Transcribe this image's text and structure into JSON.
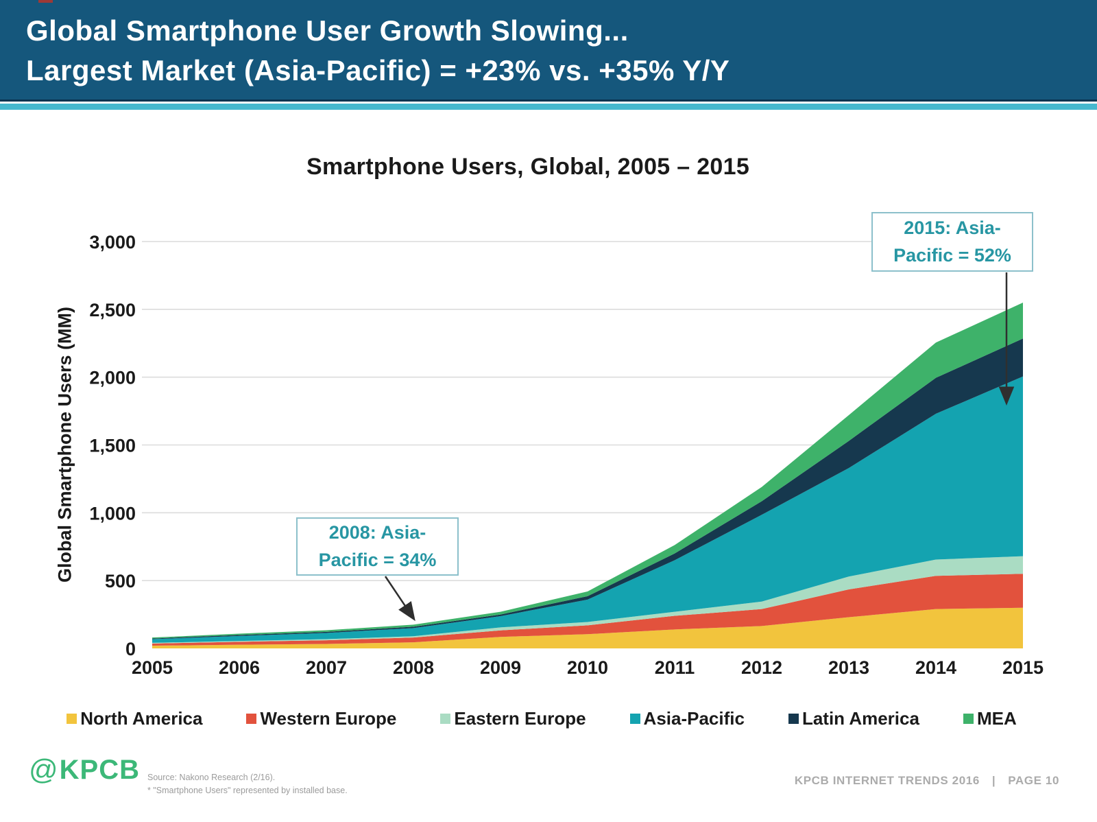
{
  "header": {
    "title_line1": "Global Smartphone User Growth Slowing...",
    "title_line2": "Largest Market (Asia-Pacific) = +23% vs. +35% Y/Y"
  },
  "chart_data": {
    "type": "area",
    "stacked": true,
    "title": "Smartphone Users, Global, 2005 – 2015",
    "xlabel": "",
    "ylabel": "Global Smartphone Users (MM)",
    "ylim": [
      0,
      3000
    ],
    "y_tick_values": [
      0,
      500,
      1000,
      1500,
      2000,
      2500,
      3000
    ],
    "y_ticks": [
      "0",
      "500",
      "1,000",
      "1,500",
      "2,000",
      "2,500",
      "3,000"
    ],
    "grid": "horizontal",
    "legend_position": "bottom",
    "categories": [
      "2005",
      "2006",
      "2007",
      "2008",
      "2009",
      "2010",
      "2011",
      "2012",
      "2013",
      "2014",
      "2015"
    ],
    "series": [
      {
        "name": "North America",
        "color": "#F2C43D",
        "values": [
          20,
          27,
          33,
          45,
          85,
          105,
          140,
          165,
          230,
          290,
          300
        ]
      },
      {
        "name": "Western Europe",
        "color": "#E2523D",
        "values": [
          16,
          22,
          27,
          35,
          48,
          65,
          100,
          125,
          205,
          245,
          250
        ]
      },
      {
        "name": "Eastern Europe",
        "color": "#AADCC3",
        "values": [
          5,
          6,
          8,
          10,
          22,
          25,
          30,
          55,
          95,
          120,
          130
        ]
      },
      {
        "name": "Asia-Pacific",
        "color": "#14A3B0",
        "values": [
          27,
          37,
          46,
          60,
          83,
          165,
          380,
          640,
          800,
          1075,
          1325
        ]
      },
      {
        "name": "Latin America",
        "color": "#16384E",
        "values": [
          5,
          7,
          8,
          10,
          12,
          25,
          50,
          100,
          200,
          265,
          280
        ]
      },
      {
        "name": "MEA",
        "color": "#3EB26A",
        "values": [
          7,
          10,
          12,
          15,
          20,
          35,
          62,
          105,
          190,
          260,
          265
        ]
      }
    ],
    "totals": [
      80,
      109,
      134,
      175,
      270,
      420,
      762,
      1190,
      1720,
      2255,
      2550
    ],
    "annotations": [
      {
        "lines": [
          "2008: Asia-",
          "Pacific = 34%"
        ]
      },
      {
        "lines": [
          "2015: Asia-",
          "Pacific = 52%"
        ]
      }
    ],
    "gridline_color": "#DCDCDC"
  },
  "footer": {
    "logo_at": "@",
    "logo_name": "KPCB",
    "source_line1": "Source: Nakono Research (2/16).",
    "source_line2": "* \"Smartphone Users\" represented by installed base.",
    "right_text": "KPCB INTERNET TRENDS 2016",
    "separator": "|",
    "page_text": "PAGE 10"
  }
}
